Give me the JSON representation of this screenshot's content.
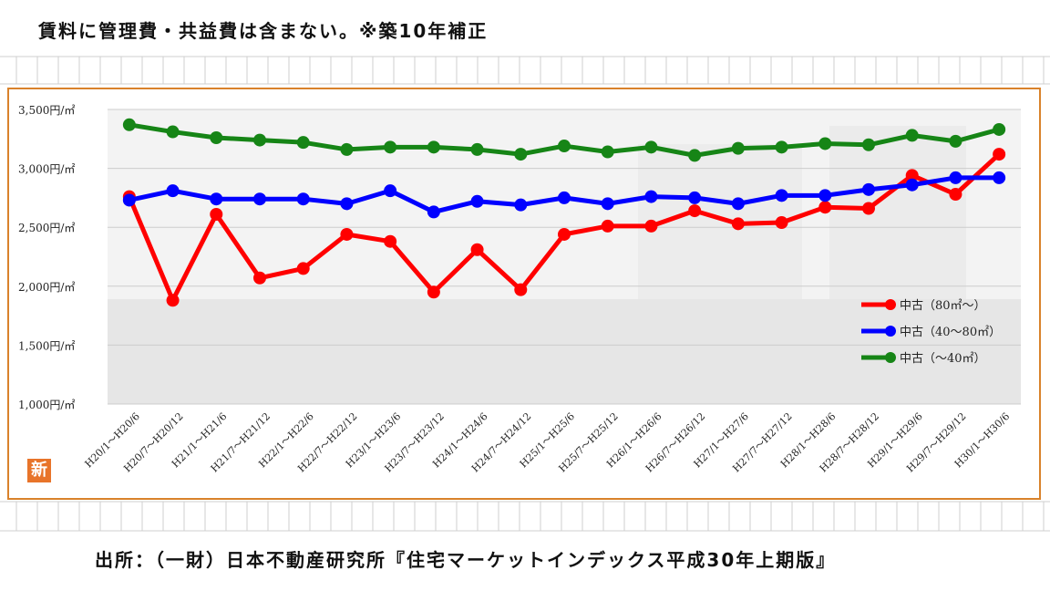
{
  "header": {
    "note": "賃料に管理費・共益費は含まない。※築10年補正"
  },
  "footer": {
    "source": "出所：（一財）日本不動産研究所『住宅マーケットインデックス平成30年上期版』"
  },
  "badge": {
    "label": "新"
  },
  "colors": {
    "frame": "#d9822b",
    "series": [
      "#ff0000",
      "#0000ff",
      "#168516"
    ],
    "badge": "#e8742a"
  },
  "chart_data": {
    "type": "line",
    "title": "",
    "xlabel": "",
    "ylabel": "",
    "ylim": [
      1000,
      3500
    ],
    "yticks": [
      {
        "value": 3500,
        "label": "3,500円/㎡"
      },
      {
        "value": 3000,
        "label": "3,000円/㎡"
      },
      {
        "value": 2500,
        "label": "2,500円/㎡"
      },
      {
        "value": 2000,
        "label": "2,000円/㎡"
      },
      {
        "value": 1500,
        "label": "1,500円/㎡"
      },
      {
        "value": 1000,
        "label": "1,000円/㎡"
      }
    ],
    "grid": true,
    "legend_position": "lower-right",
    "categories": [
      "H20/1～H20/6",
      "H20/7～H20/12",
      "H21/1～H21/6",
      "H21/7～H21/12",
      "H22/1～H22/6",
      "H22/7～H22/12",
      "H23/1～H23/6",
      "H23/7～H23/12",
      "H24/1～H24/6",
      "H24/7～H24/12",
      "H25/1～H25/6",
      "H25/7～H25/12",
      "H26/1～H26/6",
      "H26/7～H26/12",
      "H27/1～H27/6",
      "H27/7～H27/12",
      "H28/1～H28/6",
      "H28/7～H28/12",
      "H29/1～H29/6",
      "H29/7～H29/12",
      "H30/1～H30/6"
    ],
    "series": [
      {
        "name": "中古（80㎡～）",
        "color": "#ff0000",
        "values": [
          2760,
          1880,
          2610,
          2070,
          2150,
          2440,
          2380,
          1950,
          2310,
          1970,
          2440,
          2510,
          2510,
          2640,
          2530,
          2540,
          2670,
          2660,
          2940,
          2780,
          3120
        ]
      },
      {
        "name": "中古（40～80㎡）",
        "color": "#0000ff",
        "values": [
          2730,
          2810,
          2740,
          2740,
          2740,
          2700,
          2810,
          2630,
          2720,
          2690,
          2750,
          2700,
          2760,
          2750,
          2700,
          2770,
          2770,
          2820,
          2860,
          2920,
          2920
        ]
      },
      {
        "name": "中古（～40㎡）",
        "color": "#168516",
        "values": [
          3370,
          3310,
          3260,
          3240,
          3220,
          3160,
          3180,
          3180,
          3160,
          3120,
          3190,
          3140,
          3180,
          3110,
          3170,
          3180,
          3210,
          3200,
          3280,
          3230,
          3330
        ]
      }
    ]
  }
}
